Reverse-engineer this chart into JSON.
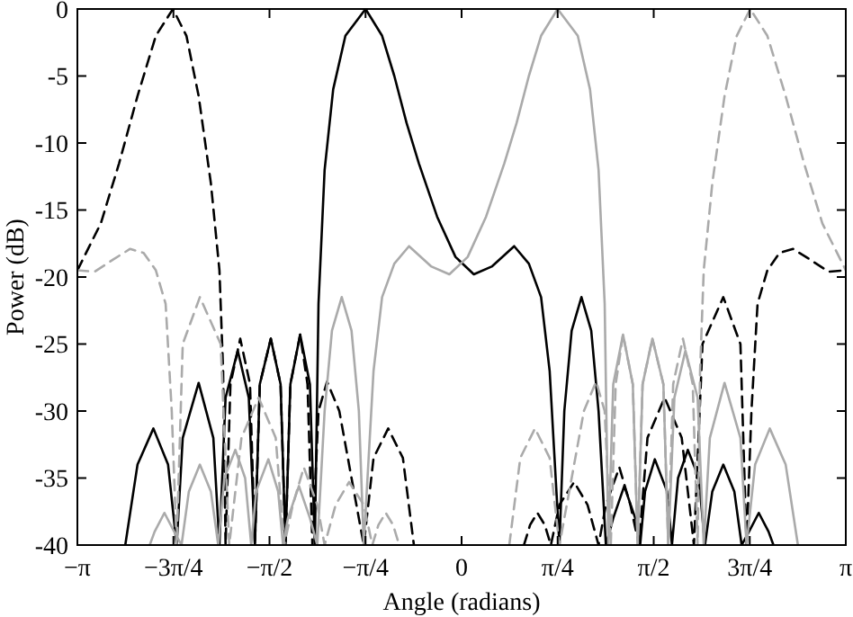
{
  "chart_data": {
    "type": "line",
    "xlabel": "Angle (radians)",
    "ylabel": "Power (dB)",
    "xlim": [
      -3.1416,
      3.1416
    ],
    "ylim": [
      -40,
      0
    ],
    "xticks": [
      {
        "value": -3.1416,
        "label": "−π"
      },
      {
        "value": -2.3562,
        "label": "−3π/4"
      },
      {
        "value": -1.5708,
        "label": "−π/2"
      },
      {
        "value": -0.7854,
        "label": "−π/4"
      },
      0,
      {
        "value": 0.7854,
        "label": "π/4"
      },
      {
        "value": 1.5708,
        "label": "π/2"
      },
      {
        "value": 2.3562,
        "label": "3π/4"
      },
      {
        "value": 3.1416,
        "label": "π"
      }
    ],
    "yticks": [
      0,
      -5,
      -10,
      -15,
      -20,
      -25,
      -30,
      -35,
      -40
    ],
    "marker": "none",
    "series": [
      {
        "color": "#000000",
        "line_style": "solid",
        "x": [
          -2.75,
          -2.65,
          -2.52,
          -2.4,
          -2.33,
          -2.28,
          -2.15,
          -2.03,
          -1.98,
          -1.93,
          -1.83,
          -1.74,
          -1.69,
          -1.65,
          -1.56,
          -1.48,
          -1.44,
          -1.4,
          -1.32,
          -1.24,
          -1.2,
          -1.17,
          -1.12,
          -1.05,
          -0.95,
          -0.785,
          -0.65,
          -0.55,
          -0.45,
          -0.35,
          -0.2,
          -0.05,
          0.1,
          0.25,
          0.43,
          0.55,
          0.65,
          0.72,
          0.8,
          0.84,
          0.9,
          0.98,
          1.06,
          1.12,
          1.18,
          1.24,
          1.33,
          1.42,
          1.46,
          1.5,
          1.58,
          1.68,
          1.72,
          1.77,
          1.85,
          1.94,
          1.99,
          2.05,
          2.14,
          2.23,
          2.29,
          2.35,
          2.43,
          2.51,
          2.55
        ],
        "values": [
          -40,
          -34,
          -31.3,
          -34,
          -40,
          -32,
          -27.9,
          -32,
          -40,
          -29,
          -25.5,
          -29,
          -40,
          -28,
          -24.6,
          -28,
          -40,
          -28,
          -24.3,
          -28,
          -40,
          -22,
          -12,
          -6,
          -2,
          0,
          -2,
          -5,
          -8.5,
          -11.5,
          -15.5,
          -18.5,
          -19.8,
          -19.2,
          -17.7,
          -19,
          -21.5,
          -27,
          -40,
          -30,
          -24,
          -21.5,
          -24,
          -30,
          -40,
          -38,
          -35.6,
          -38,
          -40,
          -36,
          -33.6,
          -36,
          -40,
          -35,
          -32.9,
          -35,
          -40,
          -36,
          -34,
          -36,
          -40,
          -39,
          -37.6,
          -39,
          -40
        ]
      },
      {
        "color": "#000000",
        "line_style": "dashed",
        "x": [
          -3.1416,
          -2.95,
          -2.8,
          -2.65,
          -2.5,
          -2.36,
          -2.25,
          -2.15,
          -2.05,
          -1.98,
          -1.95,
          -1.93,
          -1.89,
          -1.81,
          -1.73,
          -1.69,
          -1.65,
          -1.56,
          -1.48,
          -1.44,
          -1.4,
          -1.32,
          -1.26,
          -1.22,
          -1.17,
          -1.1,
          -1.0,
          -0.8,
          -0.72,
          -0.6,
          -0.48,
          -0.39,
          0,
          0.51,
          0.56,
          0.62,
          0.68,
          0.73,
          0.8,
          0.92,
          1.03,
          1.12,
          1.18,
          1.29,
          1.38,
          1.45,
          1.52,
          1.66,
          1.8,
          1.9,
          1.97,
          2.14,
          2.28,
          2.33,
          2.37,
          2.42,
          2.5,
          2.6,
          2.71,
          2.85,
          3.0,
          3.1416
        ],
        "values": [
          -19.5,
          -16,
          -11.5,
          -6.5,
          -2,
          0,
          -2,
          -6.5,
          -13,
          -19.5,
          -27,
          -40,
          -28,
          -24.6,
          -28,
          -40,
          -28,
          -24.6,
          -28,
          -40,
          -28,
          -24.3,
          -28,
          -40,
          -30,
          -27.8,
          -30,
          -40,
          -33.5,
          -31.3,
          -33.5,
          -40,
          null,
          -40,
          -38.5,
          -37.6,
          -38.5,
          -40,
          -37,
          -35.3,
          -37,
          -40,
          -37,
          -34.2,
          -37,
          -40,
          -32,
          -29,
          -32,
          -40,
          -25,
          -21.5,
          -25,
          -40,
          -30,
          -22,
          -19.5,
          -18.2,
          -17.9,
          -18.7,
          -19.6,
          -19.5
        ]
      },
      {
        "color": "#aaaaaa",
        "line_style": "solid",
        "x": [
          -2.55,
          -2.51,
          -2.43,
          -2.35,
          -2.29,
          -2.23,
          -2.14,
          -2.05,
          -1.99,
          -1.94,
          -1.85,
          -1.77,
          -1.72,
          -1.68,
          -1.58,
          -1.5,
          -1.46,
          -1.42,
          -1.33,
          -1.24,
          -1.18,
          -1.12,
          -1.06,
          -0.98,
          -0.9,
          -0.84,
          -0.8,
          -0.72,
          -0.65,
          -0.55,
          -0.43,
          -0.25,
          -0.1,
          0.05,
          0.2,
          0.35,
          0.45,
          0.55,
          0.65,
          0.785,
          0.95,
          1.05,
          1.12,
          1.17,
          1.2,
          1.24,
          1.32,
          1.4,
          1.44,
          1.48,
          1.56,
          1.65,
          1.69,
          1.74,
          1.83,
          1.93,
          1.98,
          2.03,
          2.15,
          2.28,
          2.33,
          2.4,
          2.52,
          2.65,
          2.75
        ],
        "values": [
          -40,
          -39,
          -37.6,
          -39,
          -40,
          -36,
          -34,
          -36,
          -40,
          -35,
          -32.9,
          -35,
          -40,
          -36,
          -33.6,
          -36,
          -40,
          -38,
          -35.6,
          -38,
          -40,
          -30,
          -24,
          -21.5,
          -24,
          -30,
          -40,
          -27,
          -21.5,
          -19,
          -17.7,
          -19.2,
          -19.8,
          -18.5,
          -15.5,
          -11.5,
          -8.5,
          -5,
          -2,
          0,
          -2,
          -6,
          -12,
          -22,
          -40,
          -28,
          -24.3,
          -28,
          -40,
          -28,
          -24.6,
          -28,
          -40,
          -29,
          -25.5,
          -29,
          -40,
          -32,
          -27.9,
          -32,
          -40,
          -34,
          -31.3,
          -34,
          -40
        ]
      },
      {
        "color": "#aaaaaa",
        "line_style": "dashed",
        "x": [
          -3.1416,
          -3.0,
          -2.85,
          -2.71,
          -2.6,
          -2.5,
          -2.42,
          -2.37,
          -2.33,
          -2.28,
          -2.14,
          -1.97,
          -1.9,
          -1.8,
          -1.66,
          -1.52,
          -1.45,
          -1.38,
          -1.29,
          -1.18,
          -1.12,
          -1.03,
          -0.92,
          -0.8,
          -0.73,
          -0.68,
          -0.62,
          -0.56,
          -0.51,
          0,
          0.39,
          0.48,
          0.6,
          0.72,
          0.8,
          1.0,
          1.1,
          1.17,
          1.22,
          1.26,
          1.32,
          1.4,
          1.44,
          1.48,
          1.56,
          1.65,
          1.69,
          1.73,
          1.81,
          1.89,
          1.93,
          1.95,
          1.98,
          2.05,
          2.15,
          2.25,
          2.36,
          2.5,
          2.65,
          2.8,
          2.95,
          3.1416
        ],
        "values": [
          -19.5,
          -19.6,
          -18.7,
          -17.9,
          -18.2,
          -19.5,
          -22,
          -30,
          -40,
          -25,
          -21.5,
          -25,
          -40,
          -32,
          -29,
          -32,
          -40,
          -37,
          -34.2,
          -37,
          -40,
          -37,
          -35.3,
          -37,
          -40,
          -38.5,
          -37.6,
          -38.5,
          -40,
          null,
          -40,
          -33.5,
          -31.3,
          -33.5,
          -40,
          -30,
          -27.8,
          -30,
          -40,
          -28,
          -24.3,
          -28,
          -40,
          -28,
          -24.6,
          -28,
          -40,
          -28,
          -24.6,
          -28,
          -40,
          -27,
          -19.5,
          -13,
          -6.5,
          -2,
          0,
          -2,
          -6.5,
          -11.5,
          -16,
          -19.5
        ]
      }
    ]
  }
}
